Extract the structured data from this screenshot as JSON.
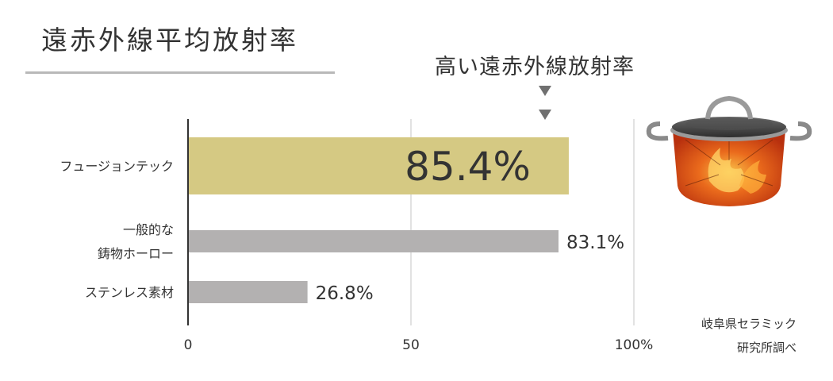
{
  "header": {
    "title": "遠赤外線平均放射率",
    "annotation": "高い遠赤外線放射率"
  },
  "source": {
    "line1": "岐阜県セラミック",
    "line2": "研究所調べ"
  },
  "colors": {
    "highlight_bar": "#d5c983",
    "gray_bar": "#b3b1b1",
    "axis": "#333333",
    "grid": "#d9d9d9",
    "arrow": "#707070"
  },
  "icons": [
    "pot-illustration"
  ],
  "chart_data": {
    "type": "bar",
    "orientation": "horizontal",
    "title": "遠赤外線平均放射率",
    "categories": [
      [
        "フュージョンテック"
      ],
      [
        "一般的な",
        "鋳物ホーロー"
      ],
      [
        "ステンレス素材"
      ]
    ],
    "values": [
      85.4,
      83.1,
      26.8
    ],
    "value_labels": [
      "85.4%",
      "83.1%",
      "26.8%"
    ],
    "highlight_index": 0,
    "xlim": [
      0,
      100
    ],
    "xticks": [
      0,
      50,
      100
    ],
    "xtick_labels": [
      "0",
      "50",
      "100%"
    ],
    "grid": true,
    "annotation_marker_value": 80
  }
}
